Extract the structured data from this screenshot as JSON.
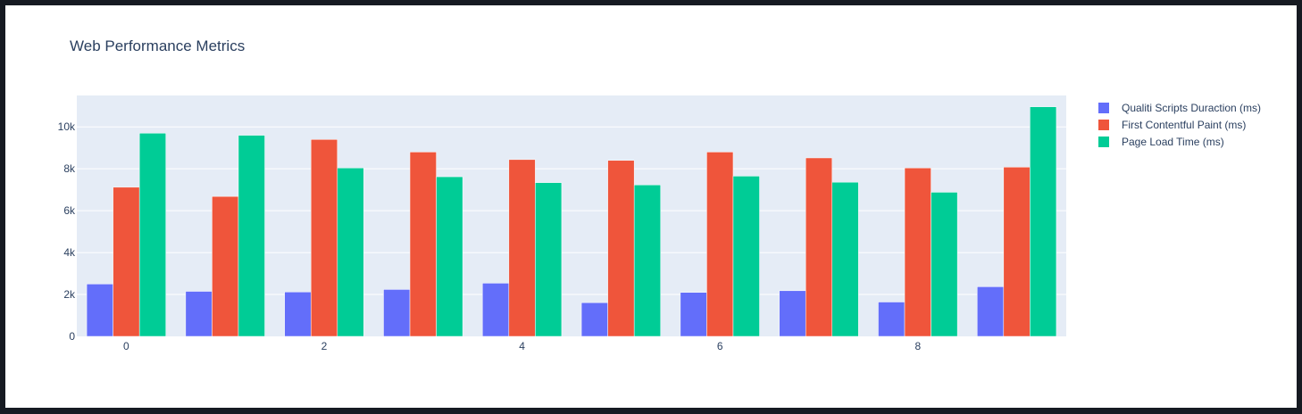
{
  "colors": {
    "page_background": "#161a22",
    "panel_background": "#ffffff",
    "plot_background": "#e5ecf6",
    "gridline": "#ffffff",
    "text": "#2a3f5f"
  },
  "chart_data": {
    "type": "bar",
    "title": "Web Performance Metrics",
    "xlabel": "",
    "ylabel": "",
    "categories": [
      0,
      1,
      2,
      3,
      4,
      5,
      6,
      7,
      8,
      9
    ],
    "x_tick_labels": [
      "0",
      "2",
      "4",
      "6",
      "8"
    ],
    "x_tick_values": [
      0,
      2,
      4,
      6,
      8
    ],
    "y_tick_labels": [
      "0",
      "2k",
      "4k",
      "6k",
      "8k",
      "10k"
    ],
    "y_tick_values": [
      0,
      2000,
      4000,
      6000,
      8000,
      10000
    ],
    "ylim": [
      0,
      11500
    ],
    "grid": true,
    "legend_position": "right",
    "series": [
      {
        "name": "Qualiti Scripts Duraction (ms)",
        "color": "#636efa",
        "values": [
          2500,
          2150,
          2120,
          2240,
          2540,
          1610,
          2100,
          2180,
          1640,
          2370
        ]
      },
      {
        "name": "First Contentful Paint (ms)",
        "color": "#ef553b",
        "values": [
          7120,
          6680,
          9400,
          8800,
          8440,
          8400,
          8800,
          8520,
          8040,
          8080
        ]
      },
      {
        "name": "Page Load Time (ms)",
        "color": "#00cc96",
        "values": [
          9700,
          9600,
          8040,
          7620,
          7340,
          7230,
          7650,
          7360,
          6880,
          10960
        ]
      }
    ]
  }
}
